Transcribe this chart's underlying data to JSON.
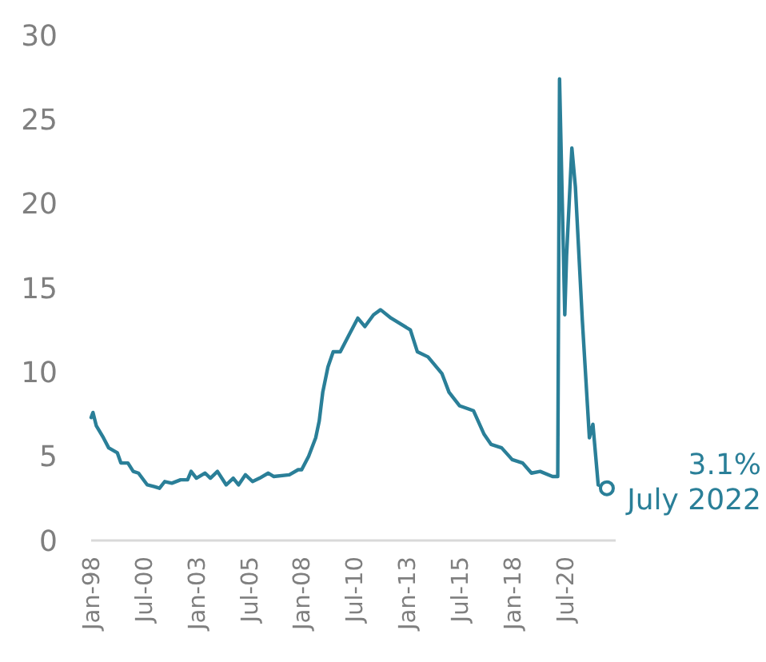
{
  "chart_data": {
    "type": "line",
    "x": [
      "1998-01",
      "1998-02",
      "1998-04",
      "1998-08",
      "1998-11",
      "1999-04",
      "1999-06",
      "1999-10",
      "2000-01",
      "2000-04",
      "2000-09",
      "2001-01",
      "2001-04",
      "2001-07",
      "2001-11",
      "2002-04",
      "2002-08",
      "2002-10",
      "2003-01",
      "2003-06",
      "2003-09",
      "2004-01",
      "2004-06",
      "2004-10",
      "2005-01",
      "2005-05",
      "2005-09",
      "2006-01",
      "2006-06",
      "2006-09",
      "2007-06",
      "2007-11",
      "2008-01",
      "2008-05",
      "2008-09",
      "2008-11",
      "2009-01",
      "2009-04",
      "2009-07",
      "2009-11",
      "2010-04",
      "2010-09",
      "2011-01",
      "2011-06",
      "2011-10",
      "2012-04",
      "2013-03",
      "2013-07",
      "2014-01",
      "2014-09",
      "2015-01",
      "2015-07",
      "2016-03",
      "2016-09",
      "2017-01",
      "2017-07",
      "2018-01",
      "2018-07",
      "2018-12",
      "2019-05",
      "2019-12",
      "2020-03",
      "2020-04",
      "2020-07",
      "2020-08",
      "2020-11",
      "2021-01",
      "2021-05",
      "2021-09",
      "2021-11",
      "2022-02",
      "2022-07"
    ],
    "series": [
      {
        "color": "#2a7f98",
        "values": [
          7.3,
          7.6,
          6.8,
          6.1,
          5.5,
          5.2,
          4.6,
          4.6,
          4.1,
          4.0,
          3.3,
          3.2,
          3.1,
          3.5,
          3.4,
          3.6,
          3.6,
          4.1,
          3.7,
          4.0,
          3.7,
          4.1,
          3.3,
          3.7,
          3.3,
          3.9,
          3.5,
          3.7,
          4.0,
          3.8,
          3.9,
          4.2,
          4.2,
          5.0,
          6.1,
          7.1,
          8.8,
          10.3,
          11.2,
          11.2,
          12.2,
          13.2,
          12.7,
          13.4,
          13.7,
          13.2,
          12.5,
          11.2,
          10.9,
          9.9,
          8.8,
          8.0,
          7.7,
          6.3,
          5.7,
          5.5,
          4.8,
          4.6,
          4.0,
          4.1,
          3.8,
          3.8,
          27.4,
          13.4,
          16.9,
          23.3,
          21.0,
          13.1,
          6.1,
          6.9,
          3.3,
          3.1
        ]
      }
    ],
    "xlim": [
      "1998-01",
      "2022-12"
    ],
    "xticks": [
      {
        "value": "1998-01",
        "label": "Jan-98"
      },
      {
        "value": "2000-07",
        "label": "Jul-00"
      },
      {
        "value": "2003-01",
        "label": "Jan-03"
      },
      {
        "value": "2005-07",
        "label": "Jul-05"
      },
      {
        "value": "2008-01",
        "label": "Jan-08"
      },
      {
        "value": "2010-07",
        "label": "Jul-10"
      },
      {
        "value": "2013-01",
        "label": "Jan-13"
      },
      {
        "value": "2015-07",
        "label": "Jul-15"
      },
      {
        "value": "2018-01",
        "label": "Jan-18"
      },
      {
        "value": "2020-07",
        "label": "Jul-20"
      }
    ],
    "ylim": [
      0,
      30
    ],
    "yticks": [
      0,
      5,
      10,
      15,
      20,
      25,
      30
    ],
    "grid": false,
    "marker": "none",
    "line_style": "solid",
    "annotations": [
      {
        "text": "3.1%\nJuly 2022",
        "x": "2022-07",
        "y": 3.1
      }
    ]
  }
}
